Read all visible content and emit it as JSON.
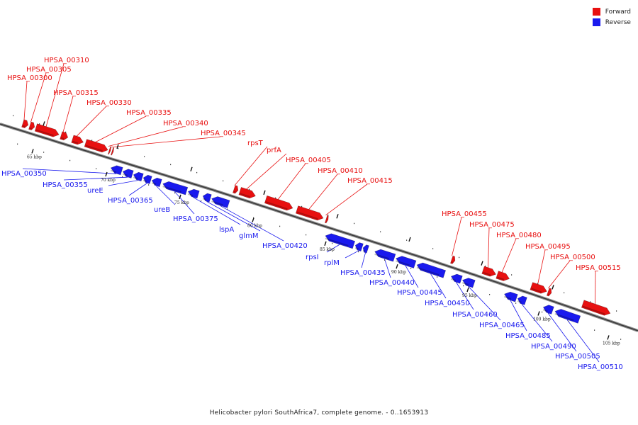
{
  "legend": {
    "forward": {
      "label": "Forward",
      "color": "#e81010"
    },
    "reverse": {
      "label": "Reverse",
      "color": "#1a1aee"
    }
  },
  "axis_ticks": [
    "65 kbp",
    "70 kbp",
    "75 kbp",
    "80 kbp",
    "85 kbp",
    "90 kbp",
    "95 kbp",
    "100 kbp",
    "105 kbp"
  ],
  "genes_forward": [
    "HPSA_00300",
    "HPSA_00305",
    "HPSA_00310",
    "HPSA_00315",
    "HPSA_00330",
    "HPSA_00335",
    "HPSA_00340",
    "HPSA_00345",
    "rpsT",
    "prfA",
    "HPSA_00405",
    "HPSA_00410",
    "HPSA_00415",
    "HPSA_00455",
    "HPSA_00475",
    "HPSA_00480",
    "HPSA_00495",
    "HPSA_00500",
    "HPSA_00515"
  ],
  "genes_reverse": [
    "HPSA_00350",
    "HPSA_00355",
    "ureE",
    "HPSA_00365",
    "ureB",
    "HPSA_00375",
    "lspA",
    "glmM",
    "HPSA_00420",
    "rpsI",
    "rplM",
    "HPSA_00435",
    "HPSA_00440",
    "HPSA_00445",
    "HPSA_00450",
    "HPSA_00460",
    "HPSA_00465",
    "HPSA_00485",
    "HPSA_00490",
    "HPSA_00505",
    "HPSA_00510"
  ],
  "caption": "Helicobacter pylori SouthAfrica7, complete genome. - 0..1653913"
}
